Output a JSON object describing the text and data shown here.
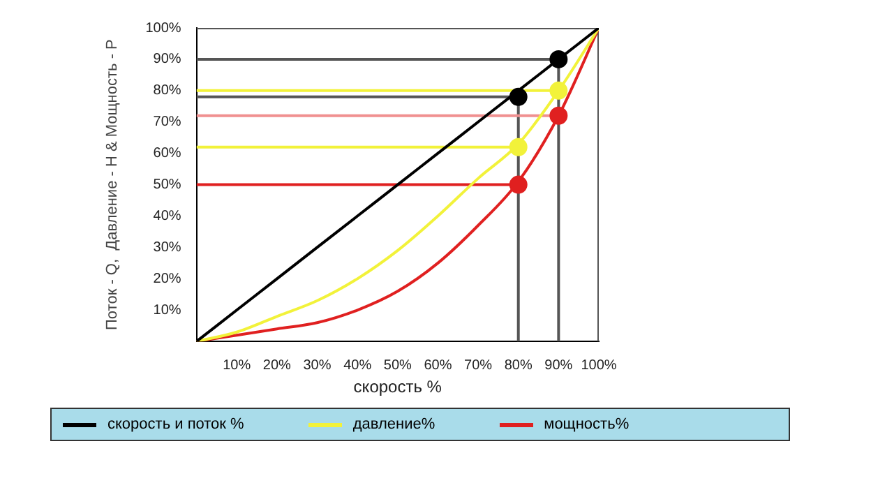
{
  "chart_data": {
    "type": "line",
    "xlabel": "скорость %",
    "ylabel": "Поток - Q,  Давление - H & Мощность - P",
    "x": [
      0,
      10,
      20,
      30,
      40,
      50,
      60,
      70,
      80,
      90,
      100
    ],
    "xlim": [
      0,
      100
    ],
    "ylim": [
      0,
      100
    ],
    "xticks": [
      {
        "value": 0,
        "label": null
      },
      {
        "value": 10,
        "label": "10%"
      },
      {
        "value": 20,
        "label": "20%"
      },
      {
        "value": 30,
        "label": "30%"
      },
      {
        "value": 40,
        "label": "40%"
      },
      {
        "value": 50,
        "label": "50%"
      },
      {
        "value": 60,
        "label": "60%"
      },
      {
        "value": 70,
        "label": "70%"
      },
      {
        "value": 80,
        "label": "80%"
      },
      {
        "value": 90,
        "label": "90%"
      },
      {
        "value": 100,
        "label": "100%"
      }
    ],
    "yticks": [
      {
        "value": 0,
        "label": null
      },
      {
        "value": 10,
        "label": "10%"
      },
      {
        "value": 20,
        "label": "20%"
      },
      {
        "value": 30,
        "label": "30%"
      },
      {
        "value": 40,
        "label": "40%"
      },
      {
        "value": 50,
        "label": "50%"
      },
      {
        "value": 60,
        "label": "60%"
      },
      {
        "value": 70,
        "label": "70%"
      },
      {
        "value": 80,
        "label": "80%"
      },
      {
        "value": 90,
        "label": "90%"
      },
      {
        "value": 100,
        "label": "100%"
      }
    ],
    "grid": false,
    "legend": "bottom",
    "marker": "none",
    "series": [
      {
        "name": "скорость и поток %",
        "color": "#000000",
        "values": [
          0,
          10,
          20,
          30,
          40,
          50,
          60,
          70,
          80,
          90,
          100
        ]
      },
      {
        "name": "давление%",
        "color": "#f2f23a",
        "values": [
          0,
          3,
          8,
          13,
          20,
          29,
          40,
          52,
          63,
          80,
          100
        ]
      },
      {
        "name": "мощность%",
        "color": "#e02020",
        "values": [
          0,
          2,
          4,
          6,
          10,
          16,
          25,
          37,
          51,
          72,
          100
        ]
      },
      {
        "type": "line",
        "color": "#555555",
        "x": [
          0,
          90
        ],
        "values": [
          90,
          90
        ]
      },
      {
        "type": "line",
        "color": "#555555",
        "x": [
          0,
          80
        ],
        "values": [
          78,
          78
        ]
      },
      {
        "type": "line",
        "color": "#f2f23a",
        "x": [
          0,
          90
        ],
        "values": [
          80,
          80
        ]
      },
      {
        "type": "line",
        "color": "#f09090",
        "x": [
          0,
          88
        ],
        "values": [
          72,
          72
        ]
      },
      {
        "type": "line",
        "color": "#f2f23a",
        "x": [
          0,
          80
        ],
        "values": [
          62,
          62
        ]
      },
      {
        "type": "line",
        "color": "#e02020",
        "x": [
          0,
          80
        ],
        "values": [
          50,
          50
        ]
      },
      {
        "type": "line",
        "color": "#555555",
        "x": [
          0,
          100
        ],
        "values": [
          100,
          100
        ]
      },
      {
        "type": "line",
        "color": "#555555",
        "x": [
          80,
          80
        ],
        "values": [
          0,
          78
        ]
      },
      {
        "type": "line",
        "color": "#555555",
        "x": [
          90,
          90
        ],
        "values": [
          0,
          90
        ]
      },
      {
        "type": "line",
        "color": "#555555",
        "x": [
          100,
          100
        ],
        "values": [
          0,
          100
        ]
      },
      {
        "type": "scatter",
        "marker": "circle",
        "color": "#000000",
        "x": [
          80,
          90
        ],
        "values": [
          78,
          90
        ]
      },
      {
        "type": "scatter",
        "marker": "circle",
        "color": "#f2f23a",
        "x": [
          80,
          90
        ],
        "values": [
          62,
          80
        ]
      },
      {
        "type": "scatter",
        "marker": "circle",
        "color": "#e02020",
        "x": [
          80,
          90
        ],
        "values": [
          50,
          72
        ]
      }
    ]
  }
}
